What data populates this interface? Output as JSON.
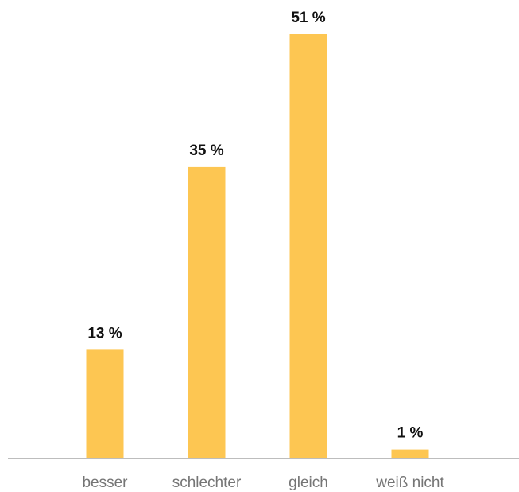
{
  "chart_data": {
    "type": "bar",
    "categories": [
      "besser",
      "schlechter",
      "gleich",
      "weiß nicht"
    ],
    "values": [
      13,
      35,
      51,
      1
    ],
    "value_labels": [
      "13 %",
      "35 %",
      "51 %",
      "1 %"
    ],
    "ylim": [
      0,
      55
    ],
    "grid": false,
    "legend": "none",
    "colors": {
      "bar": "#FDC652",
      "axis": "#bdbdbd",
      "value_text": "#111111",
      "category_text": "#757575"
    }
  }
}
